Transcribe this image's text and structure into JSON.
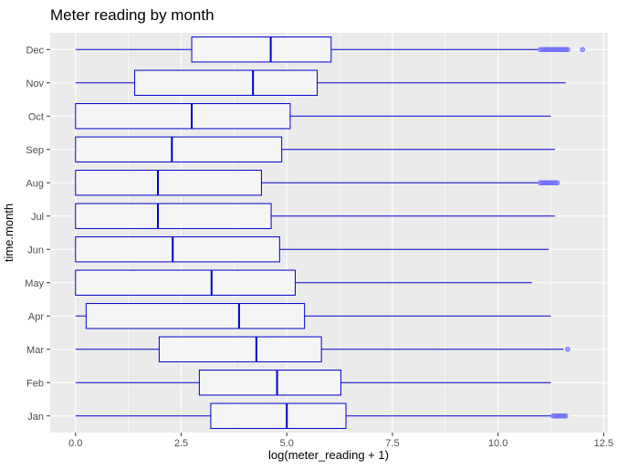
{
  "chart_data": {
    "type": "boxplot",
    "title": "Meter reading by month",
    "xlabel": "log(meter_reading + 1)",
    "ylabel": "time.month",
    "xlim": [
      -0.6,
      12.6
    ],
    "x_ticks": [
      0.0,
      2.5,
      5.0,
      7.5,
      10.0,
      12.5
    ],
    "x_tick_labels": [
      "0.0",
      "2.5",
      "5.0",
      "7.5",
      "10.0",
      "12.5"
    ],
    "grid": true,
    "colors": {
      "panel": "#ebebeb",
      "grid": "#ffffff",
      "box_stroke": "#0000cd",
      "box_fill": "#f5f5f5",
      "outlier": "#6a6aff"
    },
    "categories": [
      "Jan",
      "Feb",
      "Mar",
      "Apr",
      "May",
      "Jun",
      "Jul",
      "Aug",
      "Sep",
      "Oct",
      "Nov",
      "Dec"
    ],
    "boxes": [
      {
        "label": "Jan",
        "min": 0.0,
        "q1": 3.2,
        "median": 5.0,
        "q3": 6.4,
        "max": 11.25,
        "outliers": [
          11.3,
          11.35,
          11.4,
          11.45,
          11.5,
          11.55,
          11.6
        ]
      },
      {
        "label": "Feb",
        "min": 0.0,
        "q1": 2.93,
        "median": 4.77,
        "q3": 6.28,
        "max": 11.25,
        "outliers": []
      },
      {
        "label": "Mar",
        "min": 0.0,
        "q1": 1.98,
        "median": 4.28,
        "q3": 5.82,
        "max": 11.55,
        "outliers": [
          11.65
        ]
      },
      {
        "label": "Apr",
        "min": 0.0,
        "q1": 0.25,
        "median": 3.87,
        "q3": 5.42,
        "max": 11.25,
        "outliers": []
      },
      {
        "label": "May",
        "min": 0.0,
        "q1": 0.0,
        "median": 3.22,
        "q3": 5.2,
        "max": 10.8,
        "outliers": []
      },
      {
        "label": "Jun",
        "min": 0.0,
        "q1": 0.0,
        "median": 2.3,
        "q3": 4.83,
        "max": 11.2,
        "outliers": []
      },
      {
        "label": "Jul",
        "min": 0.0,
        "q1": 0.0,
        "median": 1.95,
        "q3": 4.63,
        "max": 11.35,
        "outliers": []
      },
      {
        "label": "Aug",
        "min": 0.0,
        "q1": 0.0,
        "median": 1.95,
        "q3": 4.4,
        "max": 10.95,
        "outliers": [
          11.0,
          11.05,
          11.1,
          11.15,
          11.2,
          11.25,
          11.3,
          11.35,
          11.4
        ]
      },
      {
        "label": "Sep",
        "min": 0.0,
        "q1": 0.0,
        "median": 2.28,
        "q3": 4.88,
        "max": 11.35,
        "outliers": []
      },
      {
        "label": "Oct",
        "min": 0.0,
        "q1": 0.0,
        "median": 2.75,
        "q3": 5.08,
        "max": 11.25,
        "outliers": []
      },
      {
        "label": "Nov",
        "min": 0.0,
        "q1": 1.4,
        "median": 4.2,
        "q3": 5.72,
        "max": 11.6,
        "outliers": []
      },
      {
        "label": "Dec",
        "min": 0.0,
        "q1": 2.75,
        "median": 4.62,
        "q3": 6.05,
        "max": 10.95,
        "outliers": [
          11.0,
          11.05,
          11.1,
          11.15,
          11.2,
          11.25,
          11.3,
          11.35,
          11.4,
          11.45,
          11.5,
          11.55,
          11.6,
          11.65,
          12.0
        ]
      }
    ]
  }
}
